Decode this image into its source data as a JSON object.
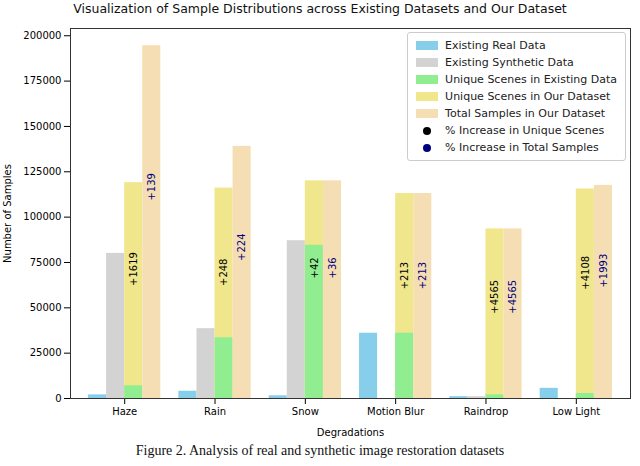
{
  "chart_data": {
    "type": "bar",
    "title": "Visualization of Sample Distributions across Existing Datasets and Our Dataset",
    "x_label": "Degradations",
    "y_label": "Number of Samples",
    "caption": "Figure 2. Analysis of real and synthetic image restoration datasets",
    "categories": [
      "Haze",
      "Rain",
      "Snow",
      "Motion Blur",
      "Raindrop",
      "Low Light"
    ],
    "series": [
      {
        "name": "Existing Real Data",
        "color": "#87ceeb",
        "values": [
          2000,
          4000,
          1500,
          36000,
          1000,
          5600
        ]
      },
      {
        "name": "Existing Synthetic Data",
        "color": "#d3d3d3",
        "values": [
          80000,
          38500,
          87000,
          0,
          1000,
          0
        ]
      },
      {
        "name": "Unique Scenes in Existing Data",
        "color": "#90ee90",
        "values": [
          7000,
          33500,
          84500,
          36000,
          2000,
          2750
        ]
      },
      {
        "name": "Unique Scenes in Our Dataset",
        "color": "#f0e68c",
        "values": [
          119000,
          116000,
          120000,
          113000,
          93500,
          115500
        ]
      },
      {
        "name": "Total Samples in Our Dataset",
        "color": "#f5deb3",
        "values": [
          194500,
          139000,
          120000,
          113000,
          93500,
          117500
        ]
      }
    ],
    "annotations": [
      {
        "name": "% Increase in Unique Scenes",
        "color": "#000000",
        "on": "Unique Scenes in Our Dataset",
        "labels": [
          "+1619",
          "+248",
          "+42",
          "+213",
          "+4565",
          "+4108"
        ]
      },
      {
        "name": "% Increase in Total Samples",
        "color": "#000080",
        "on": "Total Samples in Our Dataset",
        "labels": [
          "+139",
          "+224",
          "+36",
          "+213",
          "+4565",
          "+1993"
        ]
      }
    ],
    "ylim": [
      0,
      204000
    ],
    "yticks": [
      0,
      25000,
      50000,
      75000,
      100000,
      125000,
      150000,
      175000,
      200000
    ],
    "grid": false,
    "legend": "upper right"
  }
}
